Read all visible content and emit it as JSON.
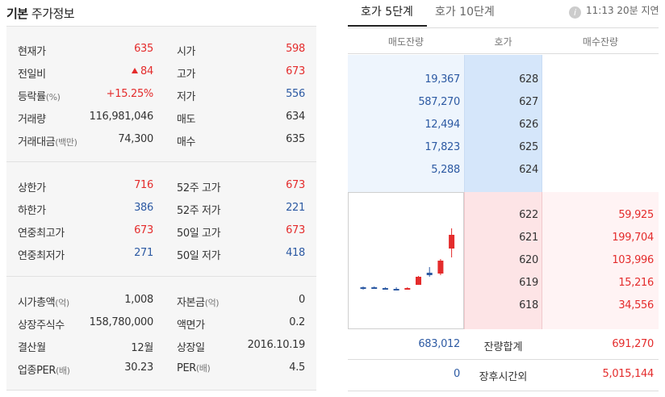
{
  "stock_info": {
    "title_strong": "기본",
    "title_rest": "주가정보",
    "section1": {
      "left": [
        {
          "label": "현재가",
          "unit": "",
          "value": "635",
          "color": "red"
        },
        {
          "label": "전일비",
          "unit": "",
          "value": "84",
          "color": "red",
          "arrow": "up"
        },
        {
          "label": "등락률",
          "unit": "(%)",
          "value": "+15.25%",
          "color": "red"
        },
        {
          "label": "거래량",
          "unit": "",
          "value": "116,981,046",
          "color": "default"
        },
        {
          "label": "거래대금",
          "unit": "(백만)",
          "value": "74,300",
          "color": "default"
        }
      ],
      "right": [
        {
          "label": "시가",
          "value": "598",
          "color": "red"
        },
        {
          "label": "고가",
          "value": "673",
          "color": "red"
        },
        {
          "label": "저가",
          "value": "556",
          "color": "blue"
        },
        {
          "label": "매도",
          "value": "634",
          "color": "default"
        },
        {
          "label": "매수",
          "value": "635",
          "color": "default"
        }
      ]
    },
    "section2": {
      "left": [
        {
          "label": "상한가",
          "value": "716",
          "color": "red"
        },
        {
          "label": "하한가",
          "value": "386",
          "color": "blue"
        },
        {
          "label": "연중최고가",
          "value": "673",
          "color": "red"
        },
        {
          "label": "연중최저가",
          "value": "271",
          "color": "blue"
        }
      ],
      "right": [
        {
          "label": "52주 고가",
          "value": "673",
          "color": "red"
        },
        {
          "label": "52주 저가",
          "value": "221",
          "color": "blue"
        },
        {
          "label": "50일 고가",
          "value": "673",
          "color": "red"
        },
        {
          "label": "50일 저가",
          "value": "418",
          "color": "blue"
        }
      ]
    },
    "section3": {
      "left": [
        {
          "label": "시가총액",
          "unit": "(억)",
          "value": "1,008"
        },
        {
          "label": "상장주식수",
          "unit": "",
          "value": "158,780,000"
        },
        {
          "label": "결산월",
          "unit": "",
          "value": "12월"
        },
        {
          "label": "업종PER",
          "unit": "(배)",
          "value": "30.23"
        }
      ],
      "right": [
        {
          "label": "자본금",
          "unit": "(억)",
          "value": "0"
        },
        {
          "label": "액면가",
          "unit": "",
          "value": "0.2"
        },
        {
          "label": "상장일",
          "unit": "",
          "value": "2016.10.19"
        },
        {
          "label": "PER",
          "unit": "(배)",
          "value": "4.5"
        }
      ]
    }
  },
  "orderbook": {
    "tabs": [
      {
        "label": "호가 5단계",
        "active": true
      },
      {
        "label": "호가 10단계",
        "active": false
      }
    ],
    "delay_icon": "info-icon",
    "delay_icon_glyph": "i",
    "delay_text": "11:13 20분 지연",
    "headers": {
      "sell": "매도잔량",
      "price": "호가",
      "buy": "매수잔량"
    },
    "asks": [
      {
        "volume": "19,367",
        "price": "628"
      },
      {
        "volume": "587,270",
        "price": "627"
      },
      {
        "volume": "12,494",
        "price": "626"
      },
      {
        "volume": "17,823",
        "price": "625"
      },
      {
        "volume": "5,288",
        "price": "624"
      }
    ],
    "bids": [
      {
        "price": "622",
        "volume": "59,925"
      },
      {
        "price": "621",
        "volume": "199,704"
      },
      {
        "price": "620",
        "volume": "103,996"
      },
      {
        "price": "619",
        "volume": "15,216"
      },
      {
        "price": "618",
        "volume": "34,556"
      }
    ],
    "total": {
      "sell": "683,012",
      "label": "잔량합계",
      "buy": "691,270"
    },
    "after_hours": {
      "sell": "0",
      "label": "장후시간외",
      "buy": "5,015,144"
    },
    "colors": {
      "up": "#e42c2c",
      "down": "#2d5aa3"
    }
  },
  "mini_chart": {
    "candles": [
      {
        "open": 5,
        "close": 7,
        "high": 8,
        "low": 4,
        "dir": "down"
      },
      {
        "open": 6,
        "close": 7,
        "high": 8,
        "low": 5,
        "dir": "down"
      },
      {
        "open": 5,
        "close": 6,
        "high": 7,
        "low": 4,
        "dir": "down"
      },
      {
        "open": 4,
        "close": 5,
        "high": 7,
        "low": 3,
        "dir": "down"
      },
      {
        "open": 5,
        "close": 6,
        "high": 7,
        "low": 4,
        "dir": "up"
      },
      {
        "open": 10,
        "close": 20,
        "high": 21,
        "low": 10,
        "dir": "up"
      },
      {
        "open": 22,
        "close": 25,
        "high": 32,
        "low": 20,
        "dir": "down"
      },
      {
        "open": 24,
        "close": 40,
        "high": 42,
        "low": 22,
        "dir": "up"
      },
      {
        "open": 55,
        "close": 72,
        "high": 80,
        "low": 44,
        "dir": "up"
      }
    ]
  }
}
